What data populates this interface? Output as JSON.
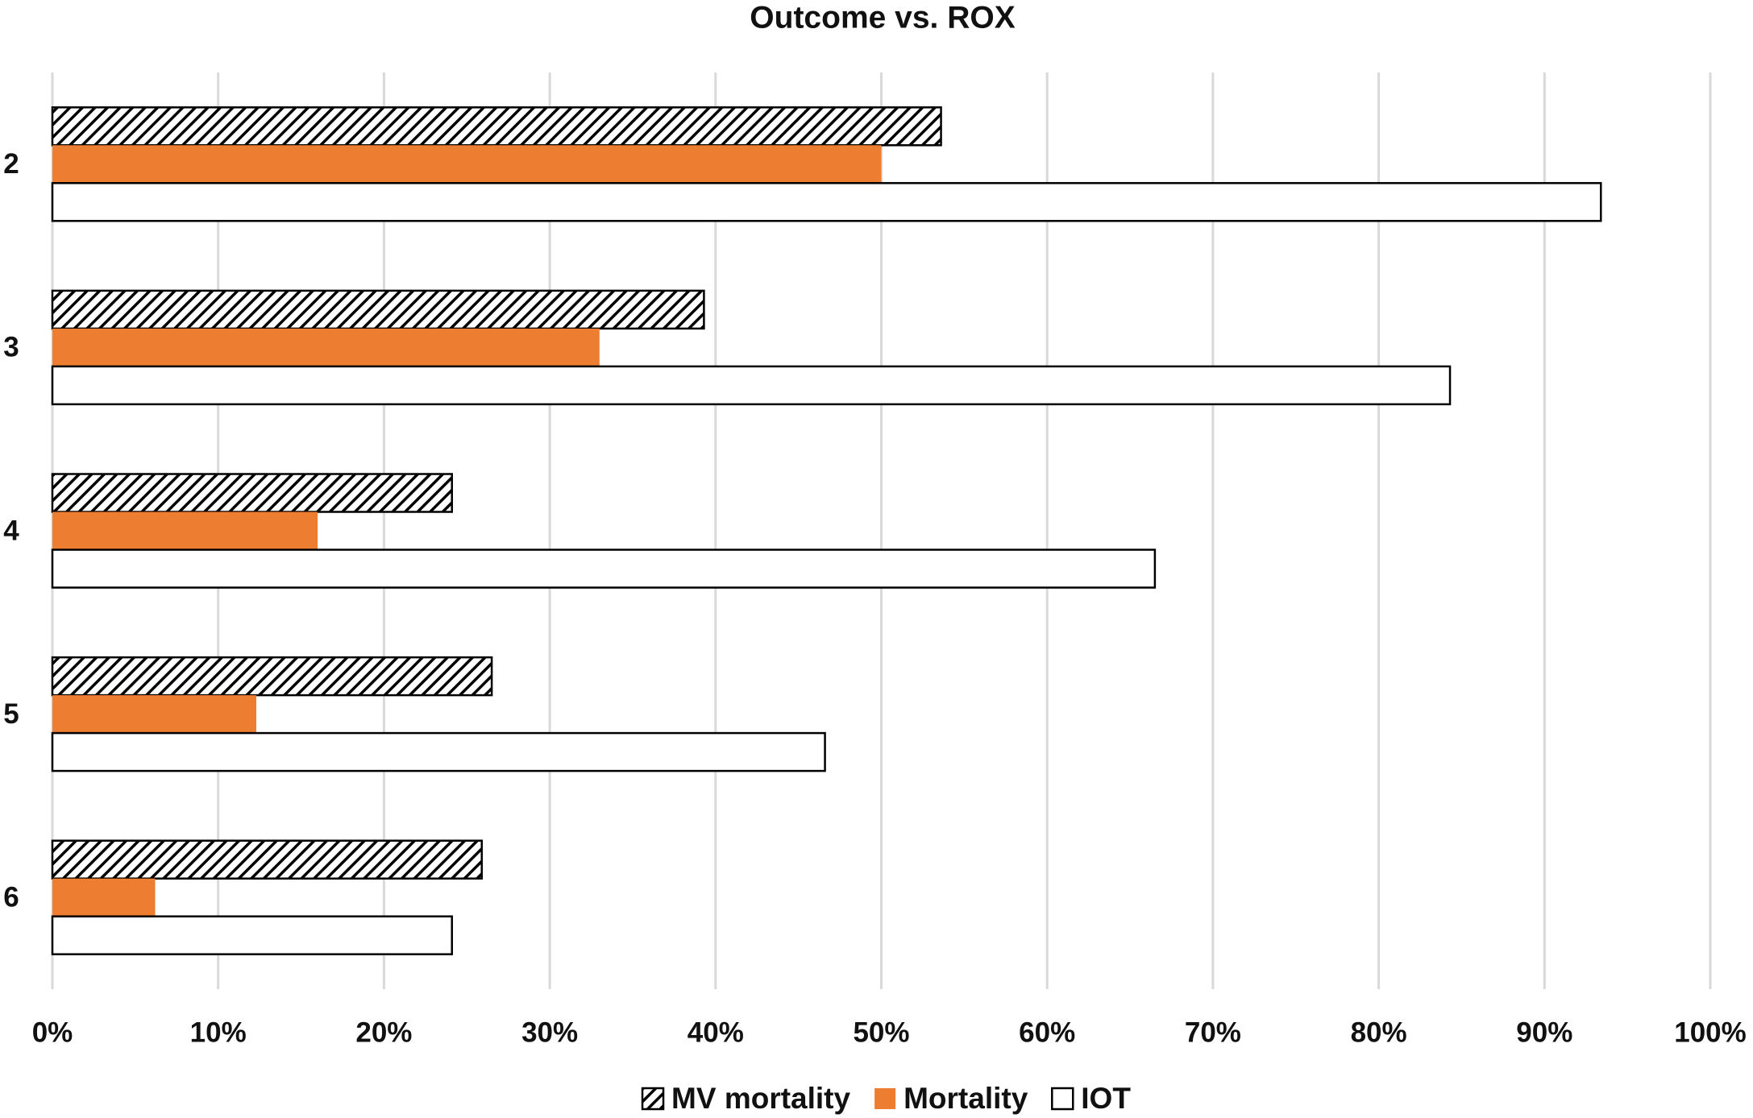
{
  "chart_data": {
    "type": "barh",
    "title": "Outcome vs. ROX",
    "categories": [
      "2",
      "3",
      "4",
      "5",
      "6"
    ],
    "series": [
      {
        "name": "MV mortality",
        "color": "#ffffff",
        "hatch": true,
        "edgecolor": "#000000",
        "values": [
          53.6,
          39.3,
          24.1,
          26.5,
          25.9
        ]
      },
      {
        "name": "Mortality",
        "color": "#ed7d31",
        "values": [
          50.0,
          33.0,
          16.0,
          12.3,
          6.2
        ]
      },
      {
        "name": "IOT",
        "color": "#ffffff",
        "edgecolor": "#000000",
        "values": [
          93.4,
          84.3,
          66.5,
          46.6,
          24.1
        ]
      }
    ],
    "xlim": [
      0,
      100
    ],
    "xticks": [
      {
        "value": 0,
        "label": "0%"
      },
      {
        "value": 10,
        "label": "10%"
      },
      {
        "value": 20,
        "label": "20%"
      },
      {
        "value": 30,
        "label": "30%"
      },
      {
        "value": 40,
        "label": "40%"
      },
      {
        "value": 50,
        "label": "50%"
      },
      {
        "value": 60,
        "label": "60%"
      },
      {
        "value": 70,
        "label": "70%"
      },
      {
        "value": 80,
        "label": "80%"
      },
      {
        "value": 90,
        "label": "90%"
      },
      {
        "value": 100,
        "label": "100%"
      }
    ],
    "grid": true,
    "legend": "bottom"
  }
}
